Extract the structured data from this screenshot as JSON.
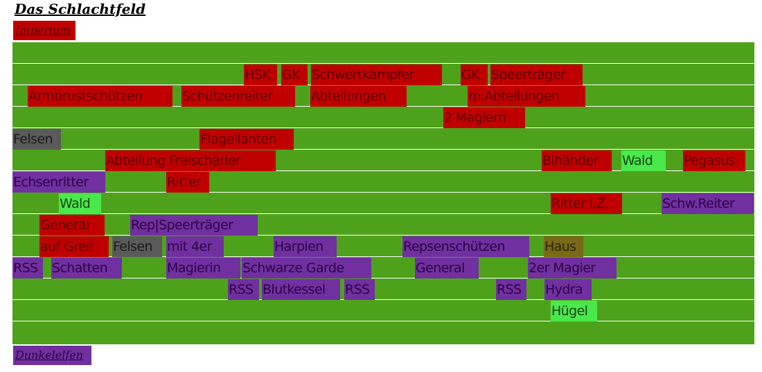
{
  "title": "Das Schlachtfeld",
  "factions": {
    "top": "Imperium",
    "bottom": "Dunkelelfen"
  },
  "colors": {
    "field": "#4ea21b",
    "imperium": "#c00000",
    "dunkelelfen": "#7030a0",
    "rock": "#5a5a5a",
    "forest": "#4be84b",
    "house": "#7a6a18"
  },
  "units": {
    "hsk": "HSK",
    "gk1": "GK",
    "schwertkaempfer": "Schwertkämpfer",
    "gk2": "GK",
    "speertraeger": "Speerträger",
    "armbrust": "Armbrustschützen",
    "schuetzenreiter": "Schützenreiter",
    "abteilungen": "Abteilungen",
    "m_abteilungen": "m.Abteilungen",
    "magiern2": "2 Magiern",
    "felsen1": "Felsen",
    "flagellanten": "Flagellanten",
    "freischaerler": "Abteilung Freischärler",
    "bihaender": "Bihänder",
    "wald1": "Wald",
    "pegasus": "Pegasus",
    "echsenritter": "Echsenritter",
    "ritter": "Ritter",
    "wald2": "Wald",
    "ritter_iz": "Ritter i.Z.",
    "schw_reiter": "Schw.Reiter",
    "general1": "General",
    "rep_speertraeger": "Rep|Speerträger",
    "auf_greif": "auf Greif",
    "felsen2": "Felsen",
    "mit4er": "mit 4er",
    "harpien": "Harpien",
    "repsenschuetzen": "Repsenschützen",
    "haus": "Haus",
    "rss1": "RSS",
    "schatten": "Schatten",
    "magierin": "Magierin",
    "schwarze_garde": "Schwarze Garde",
    "general2": "General",
    "magier2er": "2er Magier",
    "rss2": "RSS",
    "blutkessel": "Blutkessel",
    "rss3": "RSS",
    "rss4": "RSS",
    "hydra": "Hydra",
    "huegel": "Hügel"
  }
}
